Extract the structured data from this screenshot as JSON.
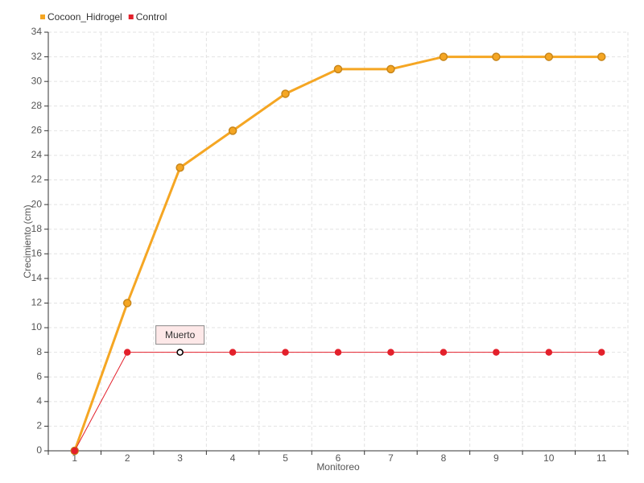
{
  "chart_data": {
    "type": "line",
    "x_label": "Monitoreo",
    "y_label": "Crecimiento (cm)",
    "categories": [
      "1",
      "2",
      "3",
      "4",
      "5",
      "6",
      "7",
      "8",
      "9",
      "10",
      "11"
    ],
    "series": [
      {
        "name": "Cocoon_Hidrogel",
        "color": "#f5a623",
        "values": [
          0,
          12,
          23,
          26,
          29,
          31,
          31,
          32,
          32,
          32,
          32
        ]
      },
      {
        "name": "Control",
        "color": "#e3202b",
        "values": [
          0,
          8,
          8,
          8,
          8,
          8,
          8,
          8,
          8,
          8,
          8
        ]
      }
    ],
    "ylim": [
      0,
      34
    ],
    "yticks": [
      0,
      2,
      4,
      6,
      8,
      10,
      12,
      14,
      16,
      18,
      20,
      22,
      24,
      26,
      28,
      30,
      32,
      34
    ],
    "grid": true,
    "legend": "top-left",
    "annotations": [
      {
        "text": "Muerto",
        "x": "3",
        "y": 8
      }
    ]
  }
}
